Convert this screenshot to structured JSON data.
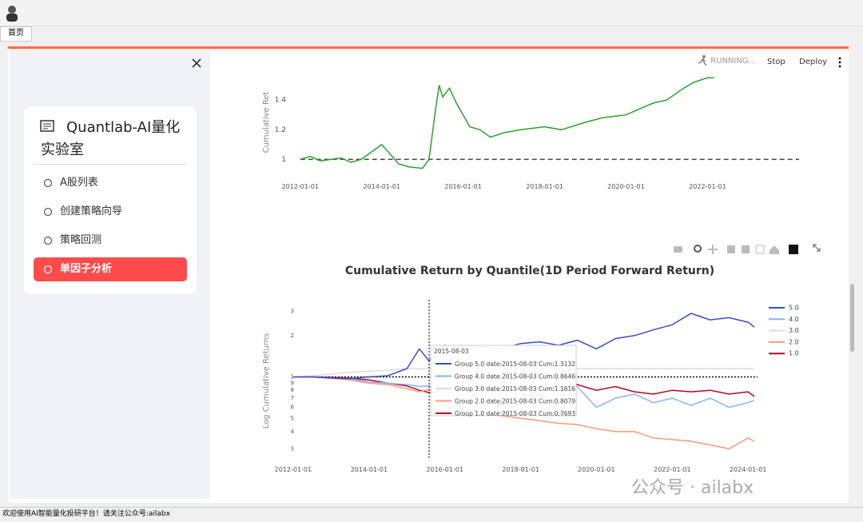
{
  "window": {
    "tab": "首页",
    "status_bar": "欢迎使用AI智能量化投研平台！请关注公众号:ailabx"
  },
  "sidebar": {
    "title": "Quantlab-AI量化实验室",
    "menu": [
      "A股列表",
      "创建策略向导",
      "策略回测",
      "单因子分析"
    ],
    "active": 3
  },
  "toolbar": {
    "status": "RUNNING...",
    "buttons": [
      "Stop",
      "Deploy"
    ]
  },
  "watermark": "公众号 · ailabx",
  "chart_data": [
    {
      "type": "line",
      "y_label": "Cumulative Ret",
      "color": "#2ca02c",
      "x": [
        "2012-01-01",
        "2012-04-01",
        "2012-07-01",
        "2012-10-01",
        "2013-01-01",
        "2013-04-01",
        "2013-07-01",
        "2013-10-01",
        "2014-01-01",
        "2014-03-01",
        "2014-06-01",
        "2014-09-01",
        "2015-01-01",
        "2015-03-01",
        "2015-05-01",
        "2015-06-01",
        "2015-07-01",
        "2015-09-01",
        "2015-11-01",
        "2016-01-01",
        "2016-03-01",
        "2016-06-01",
        "2016-09-01",
        "2017-01-01",
        "2017-06-01",
        "2018-01-01",
        "2018-06-01",
        "2019-01-01",
        "2019-06-01",
        "2020-01-01",
        "2020-06-01",
        "2020-09-01",
        "2021-01-01",
        "2021-06-01",
        "2021-09-01",
        "2022-01-01",
        "2022-03-01"
      ],
      "values": [
        1.0,
        1.02,
        0.99,
        1.0,
        1.01,
        0.98,
        1.0,
        1.05,
        1.1,
        1.05,
        0.97,
        0.95,
        0.94,
        1.0,
        1.35,
        1.5,
        1.42,
        1.48,
        1.38,
        1.3,
        1.22,
        1.2,
        1.15,
        1.18,
        1.2,
        1.22,
        1.2,
        1.25,
        1.28,
        1.3,
        1.35,
        1.38,
        1.4,
        1.48,
        1.52,
        1.55,
        1.55
      ],
      "xlim": [
        "2011-03-01",
        "2024-04-01"
      ],
      "xticks": [
        "2012-01-01",
        "2014-01-01",
        "2016-01-01",
        "2018-01-01",
        "2020-01-01",
        "2022-01-01"
      ],
      "ylim": [
        0.9,
        1.6
      ],
      "yticks": [
        1,
        1.2,
        1.4
      ],
      "reference_line": 1
    },
    {
      "type": "line",
      "title": "Cumulative Return by Quantile(1D Period Forward Return)",
      "y_label": "Log Cumulative Returns",
      "log_y": true,
      "x": [
        "2012-01-01",
        "2012-07-01",
        "2013-01-01",
        "2013-07-01",
        "2014-01-01",
        "2014-07-01",
        "2015-01-01",
        "2015-05-01",
        "2015-08-01",
        "2016-01-01",
        "2016-07-01",
        "2017-01-01",
        "2017-07-01",
        "2018-01-01",
        "2018-07-01",
        "2019-01-01",
        "2019-07-01",
        "2020-01-01",
        "2020-07-01",
        "2021-01-01",
        "2021-07-01",
        "2022-01-01",
        "2022-07-01",
        "2023-01-01",
        "2023-07-01",
        "2024-01-01",
        "2024-03-01"
      ],
      "series": [
        {
          "name": "5.0",
          "color": "#3b4cc0",
          "values": [
            1,
            1,
            0.98,
            0.97,
            1.0,
            1.02,
            1.15,
            1.6,
            1.31,
            1.7,
            1.6,
            1.65,
            1.6,
            1.75,
            1.8,
            1.7,
            1.85,
            1.6,
            1.9,
            2.0,
            2.2,
            2.4,
            2.9,
            2.6,
            2.7,
            2.5,
            2.3
          ]
        },
        {
          "name": "4.0",
          "color": "#8db0fe",
          "values": [
            1,
            1,
            0.98,
            0.97,
            0.92,
            0.9,
            0.88,
            0.85,
            0.86,
            0.78,
            0.74,
            0.72,
            0.8,
            0.75,
            0.72,
            0.8,
            0.85,
            0.6,
            0.7,
            0.75,
            0.65,
            0.7,
            0.62,
            0.7,
            0.6,
            0.65,
            0.68
          ]
        },
        {
          "name": "3.0",
          "color": "#dcdcdc",
          "values": [
            1,
            1.02,
            1.05,
            1.08,
            1.1,
            1.12,
            1.15,
            1.14,
            1.16,
            1.15,
            1.15,
            1.15,
            1.15,
            1.15,
            1.15,
            1.15,
            1.15,
            1.15,
            1.15,
            1.15,
            1.15,
            1.15,
            1.15,
            1.15,
            1.15,
            1.15,
            1.15
          ]
        },
        {
          "name": "2.0",
          "color": "#f49a7b",
          "values": [
            1,
            1,
            0.98,
            0.95,
            0.9,
            0.88,
            0.82,
            0.78,
            0.81,
            0.7,
            0.6,
            0.55,
            0.52,
            0.5,
            0.48,
            0.46,
            0.45,
            0.42,
            0.4,
            0.4,
            0.36,
            0.35,
            0.34,
            0.32,
            0.3,
            0.36,
            0.34
          ]
        },
        {
          "name": "1.0",
          "color": "#b40426",
          "values": [
            1,
            1,
            0.99,
            0.98,
            0.95,
            0.9,
            0.86,
            0.8,
            0.77,
            0.8,
            0.85,
            0.82,
            0.8,
            0.85,
            0.82,
            0.85,
            0.88,
            0.8,
            0.85,
            0.78,
            0.75,
            0.8,
            0.78,
            0.8,
            0.75,
            0.78,
            0.72
          ]
        }
      ],
      "xlim": [
        "2011-07-01",
        "2024-04-01"
      ],
      "xticks": [
        "2012-01-01",
        "2014-01-01",
        "2016-01-01",
        "2018-01-01",
        "2020-01-01",
        "2022-01-01",
        "2024-01-01"
      ],
      "ylim": [
        0.25,
        3.5
      ],
      "yticks": [
        3,
        2,
        1,
        {
          "value": 0.9,
          "label": "9"
        },
        {
          "value": 0.8,
          "label": "8"
        },
        {
          "value": 0.7,
          "label": "7"
        },
        {
          "value": 0.6,
          "label": "6"
        },
        {
          "value": 0.5,
          "label": "5"
        },
        {
          "value": 0.4,
          "label": "4"
        },
        {
          "value": 0.3,
          "label": "3"
        }
      ],
      "reference_line": 1,
      "hover": {
        "x": "2015-08-03",
        "title": "2015-08-03",
        "lines": [
          "Group 5.0 date:2015-08-03 Cum:1.3132",
          "Group 4.0 date:2015-08-03 Cum:0.8646",
          "Group 3.0 date:2015-08-03 Cum:1.1616",
          "Group 2.0 date:2015-08-03 Cum:0.8079",
          "Group 1.0 date:2015-08-03 Cum:0.7693"
        ]
      }
    }
  ]
}
